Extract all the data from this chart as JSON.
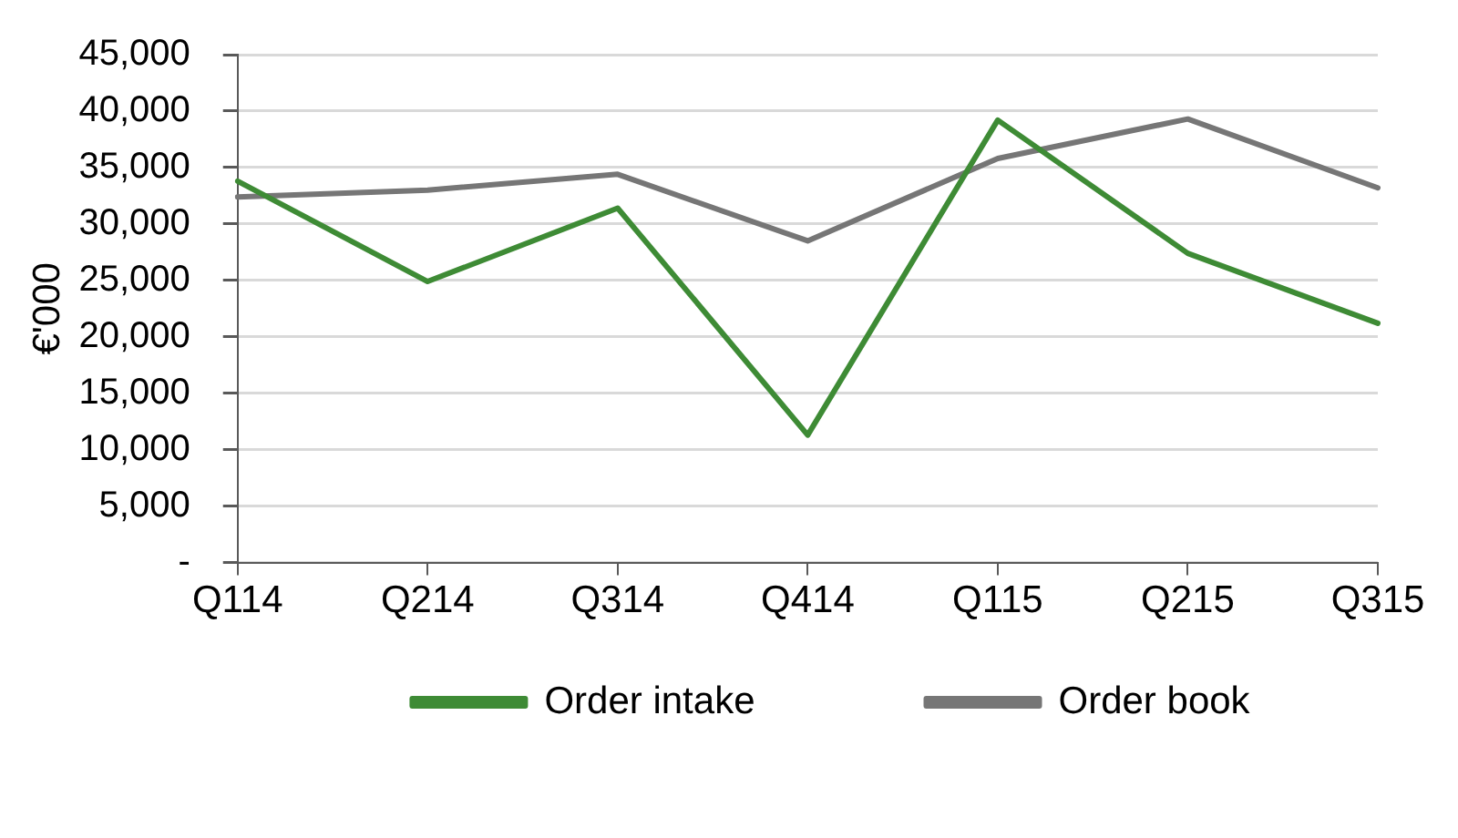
{
  "chart_data": {
    "type": "line",
    "ylabel": "€'000",
    "categories": [
      "Q114",
      "Q214",
      "Q314",
      "Q414",
      "Q115",
      "Q215",
      "Q315"
    ],
    "series": [
      {
        "name": "Order intake",
        "color": "#3e8b35",
        "values": [
          33800,
          24900,
          31400,
          11300,
          39200,
          27400,
          21200
        ]
      },
      {
        "name": "Order book",
        "color": "#767676",
        "values": [
          32400,
          33000,
          34400,
          28500,
          35800,
          39300,
          33200
        ]
      }
    ],
    "ylim": [
      0,
      45000
    ],
    "yticks": [
      {
        "value": 0,
        "label": "-"
      },
      {
        "value": 5000,
        "label": "5,000"
      },
      {
        "value": 10000,
        "label": "10,000"
      },
      {
        "value": 15000,
        "label": "15,000"
      },
      {
        "value": 20000,
        "label": "20,000"
      },
      {
        "value": 25000,
        "label": "25,000"
      },
      {
        "value": 30000,
        "label": "30,000"
      },
      {
        "value": 35000,
        "label": "35,000"
      },
      {
        "value": 40000,
        "label": "40,000"
      },
      {
        "value": 45000,
        "label": "45,000"
      }
    ],
    "grid": "y",
    "legend": "bottom",
    "marker": "none",
    "line_style": "solid"
  }
}
